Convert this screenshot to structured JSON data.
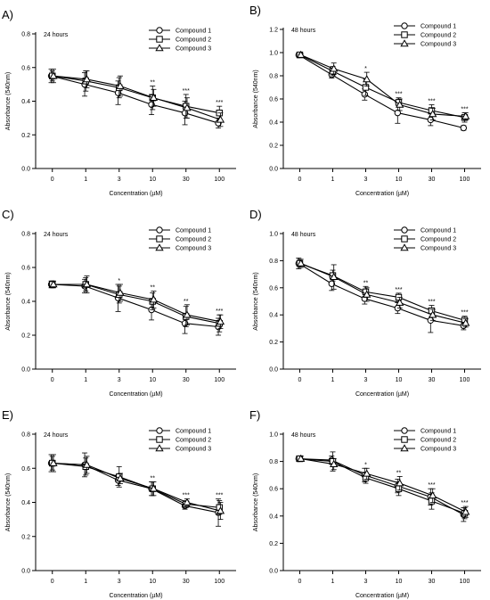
{
  "chart_data": [
    {
      "type": "line",
      "panel_label": "A)",
      "annotation": "24 hours",
      "ylabel": "Absorbance  (540nm)",
      "xlabel": "Concentration (µM)",
      "categories": [
        "0",
        "1",
        "3",
        "10",
        "30",
        "100"
      ],
      "ylim": [
        0,
        0.8
      ],
      "yticks": [
        "0.0",
        "0.2",
        "0.4",
        "0.6",
        "0.8"
      ],
      "series": [
        {
          "name": "Compound 1",
          "values": [
            0.55,
            0.5,
            0.45,
            0.38,
            0.33,
            0.27
          ],
          "err": [
            0.04,
            0.07,
            0.07,
            0.06,
            0.07,
            0.03
          ]
        },
        {
          "name": "Compound 2",
          "values": [
            0.55,
            0.52,
            0.48,
            0.42,
            0.37,
            0.33
          ],
          "err": [
            0.03,
            0.06,
            0.06,
            0.07,
            0.07,
            0.04
          ]
        },
        {
          "name": "Compound 3",
          "values": [
            0.55,
            0.53,
            0.49,
            0.42,
            0.36,
            0.29
          ],
          "err": [
            0.04,
            0.05,
            0.06,
            0.05,
            0.06,
            0.04
          ]
        }
      ],
      "significance": [
        "",
        "",
        "",
        "**",
        "***",
        "***"
      ],
      "legend": "top-right"
    },
    {
      "type": "line",
      "panel_label": "B)",
      "annotation": "48 hours",
      "ylabel": "Absorbance  (540nm)",
      "xlabel": "Concentration (µM)",
      "categories": [
        "0",
        "1",
        "3",
        "10",
        "30",
        "100"
      ],
      "ylim": [
        0,
        1.2
      ],
      "yticks": [
        "0.0",
        "0.2",
        "0.4",
        "0.6",
        "0.8",
        "1.0",
        "1.2"
      ],
      "series": [
        {
          "name": "Compound 1",
          "values": [
            0.98,
            0.81,
            0.64,
            0.48,
            0.42,
            0.35
          ],
          "err": [
            0.01,
            0.03,
            0.05,
            0.09,
            0.05,
            0.02
          ]
        },
        {
          "name": "Compound 2",
          "values": [
            0.98,
            0.84,
            0.7,
            0.57,
            0.5,
            0.44
          ],
          "err": [
            0.01,
            0.04,
            0.07,
            0.04,
            0.05,
            0.04
          ]
        },
        {
          "name": "Compound 3",
          "values": [
            0.98,
            0.86,
            0.77,
            0.55,
            0.47,
            0.45
          ],
          "err": [
            0.01,
            0.05,
            0.06,
            0.05,
            0.05,
            0.03
          ]
        }
      ],
      "significance": [
        "",
        "",
        "*",
        "***",
        "***",
        "***"
      ],
      "legend": "top-right"
    },
    {
      "type": "line",
      "panel_label": "C)",
      "annotation": "24 hours",
      "ylabel": "Absorbance  (540nm)",
      "xlabel": "Concentration (µM)",
      "categories": [
        "0",
        "1",
        "3",
        "10",
        "30",
        "100"
      ],
      "ylim": [
        0,
        0.8
      ],
      "yticks": [
        "0.0",
        "0.2",
        "0.4",
        "0.6",
        "0.8"
      ],
      "series": [
        {
          "name": "Compound 1",
          "values": [
            0.5,
            0.49,
            0.42,
            0.35,
            0.27,
            0.25
          ],
          "err": [
            0.02,
            0.04,
            0.08,
            0.06,
            0.06,
            0.05
          ]
        },
        {
          "name": "Compound 2",
          "values": [
            0.5,
            0.5,
            0.44,
            0.4,
            0.31,
            0.27
          ],
          "err": [
            0.02,
            0.04,
            0.05,
            0.05,
            0.06,
            0.05
          ]
        },
        {
          "name": "Compound 3",
          "values": [
            0.5,
            0.5,
            0.45,
            0.41,
            0.32,
            0.28
          ],
          "err": [
            0.02,
            0.05,
            0.05,
            0.05,
            0.06,
            0.04
          ]
        }
      ],
      "significance": [
        "",
        "",
        "*",
        "**",
        "**",
        "***"
      ],
      "legend": "top-right"
    },
    {
      "type": "line",
      "panel_label": "D)",
      "annotation": "48 hours",
      "ylabel": "Absorbance  (540nm)",
      "xlabel": "Concentration (µM)",
      "categories": [
        "0",
        "1",
        "3",
        "10",
        "30",
        "100"
      ],
      "ylim": [
        0,
        1.0
      ],
      "yticks": [
        "0.0",
        "0.2",
        "0.4",
        "0.6",
        "0.8",
        "1.0"
      ],
      "series": [
        {
          "name": "Compound 1",
          "values": [
            0.78,
            0.63,
            0.52,
            0.45,
            0.36,
            0.32
          ],
          "err": [
            0.04,
            0.05,
            0.04,
            0.04,
            0.09,
            0.03
          ]
        },
        {
          "name": "Compound 2",
          "values": [
            0.78,
            0.69,
            0.57,
            0.53,
            0.43,
            0.36
          ],
          "err": [
            0.03,
            0.04,
            0.04,
            0.03,
            0.04,
            0.03
          ]
        },
        {
          "name": "Compound 3",
          "values": [
            0.78,
            0.68,
            0.55,
            0.49,
            0.4,
            0.34
          ],
          "err": [
            0.03,
            0.09,
            0.05,
            0.04,
            0.04,
            0.03
          ]
        }
      ],
      "significance": [
        "",
        "",
        "**",
        "***",
        "***",
        "***"
      ],
      "legend": "top-right"
    },
    {
      "type": "line",
      "panel_label": "E)",
      "annotation": "24 hours",
      "ylabel": "Absorbance  (540nm)",
      "xlabel": "Concentration (µM)",
      "categories": [
        "0",
        "1",
        "3",
        "10",
        "30",
        "100"
      ],
      "ylim": [
        0,
        0.8
      ],
      "yticks": [
        "0.0",
        "0.2",
        "0.4",
        "0.6",
        "0.8"
      ],
      "series": [
        {
          "name": "Compound 1",
          "values": [
            0.63,
            0.62,
            0.53,
            0.48,
            0.38,
            0.34
          ],
          "err": [
            0.05,
            0.07,
            0.03,
            0.04,
            0.02,
            0.08
          ]
        },
        {
          "name": "Compound 2",
          "values": [
            0.63,
            0.61,
            0.55,
            0.48,
            0.39,
            0.37
          ],
          "err": [
            0.04,
            0.05,
            0.06,
            0.04,
            0.02,
            0.04
          ]
        },
        {
          "name": "Compound 3",
          "values": [
            0.63,
            0.62,
            0.54,
            0.48,
            0.4,
            0.35
          ],
          "err": [
            0.05,
            0.05,
            0.03,
            0.04,
            0.02,
            0.05
          ]
        }
      ],
      "significance": [
        "",
        "",
        "",
        "**",
        "***",
        "***"
      ],
      "legend": "top-right"
    },
    {
      "type": "line",
      "panel_label": "F)",
      "annotation": "48 hours",
      "ylabel": "Absorbance  (540nm)",
      "xlabel": "Concentration (µM)",
      "categories": [
        "0",
        "1",
        "3",
        "10",
        "30",
        "100"
      ],
      "ylim": [
        0,
        1.0
      ],
      "yticks": [
        "0.0",
        "0.2",
        "0.4",
        "0.6",
        "0.8",
        "1.0"
      ],
      "series": [
        {
          "name": "Compound 1",
          "values": [
            0.82,
            0.81,
            0.7,
            0.62,
            0.54,
            0.41
          ],
          "err": [
            0.02,
            0.03,
            0.05,
            0.05,
            0.06,
            0.05
          ]
        },
        {
          "name": "Compound 2",
          "values": [
            0.82,
            0.8,
            0.68,
            0.6,
            0.51,
            0.42
          ],
          "err": [
            0.02,
            0.07,
            0.04,
            0.05,
            0.06,
            0.04
          ]
        },
        {
          "name": "Compound 3",
          "values": [
            0.82,
            0.78,
            0.71,
            0.64,
            0.55,
            0.43
          ],
          "err": [
            0.02,
            0.04,
            0.04,
            0.05,
            0.05,
            0.04
          ]
        }
      ],
      "significance": [
        "",
        "",
        "*",
        "**",
        "***",
        "***"
      ],
      "legend": "top-right"
    }
  ]
}
